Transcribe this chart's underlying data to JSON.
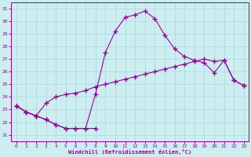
{
  "bg_color": "#cceef0",
  "line_color": "#990099",
  "grid_color": "#aadddd",
  "xlabel": "Windchill (Refroidissement éolien,°C)",
  "xlim": [
    -0.5,
    23.5
  ],
  "ylim": [
    20.5,
    31.5
  ],
  "xticks": [
    0,
    1,
    2,
    3,
    4,
    5,
    6,
    7,
    8,
    9,
    10,
    11,
    12,
    13,
    14,
    15,
    16,
    17,
    18,
    19,
    20,
    21,
    22,
    23
  ],
  "yticks": [
    21,
    22,
    23,
    24,
    25,
    26,
    27,
    28,
    29,
    30,
    31
  ],
  "line1_y": [
    23.3,
    22.8,
    22.5,
    22.2,
    21.8,
    21.5,
    21.5,
    21.5,
    21.5,
    null,
    null,
    null,
    null,
    null,
    null,
    null,
    null,
    null,
    null,
    null,
    null,
    null,
    null,
    null
  ],
  "line2_y": [
    23.3,
    22.8,
    22.5,
    23.5,
    24.0,
    24.2,
    24.3,
    24.5,
    24.8,
    25.0,
    25.2,
    25.4,
    25.6,
    25.8,
    26.0,
    26.2,
    26.4,
    26.6,
    26.8,
    27.0,
    26.8,
    26.9,
    25.3,
    24.9
  ],
  "line3_y": [
    23.3,
    22.8,
    22.5,
    22.2,
    21.8,
    21.5,
    21.5,
    21.5,
    24.2,
    27.5,
    29.2,
    30.3,
    30.5,
    30.8,
    30.2,
    28.9,
    27.8,
    27.2,
    26.9,
    26.7,
    25.9,
    26.9,
    25.3,
    24.9
  ]
}
